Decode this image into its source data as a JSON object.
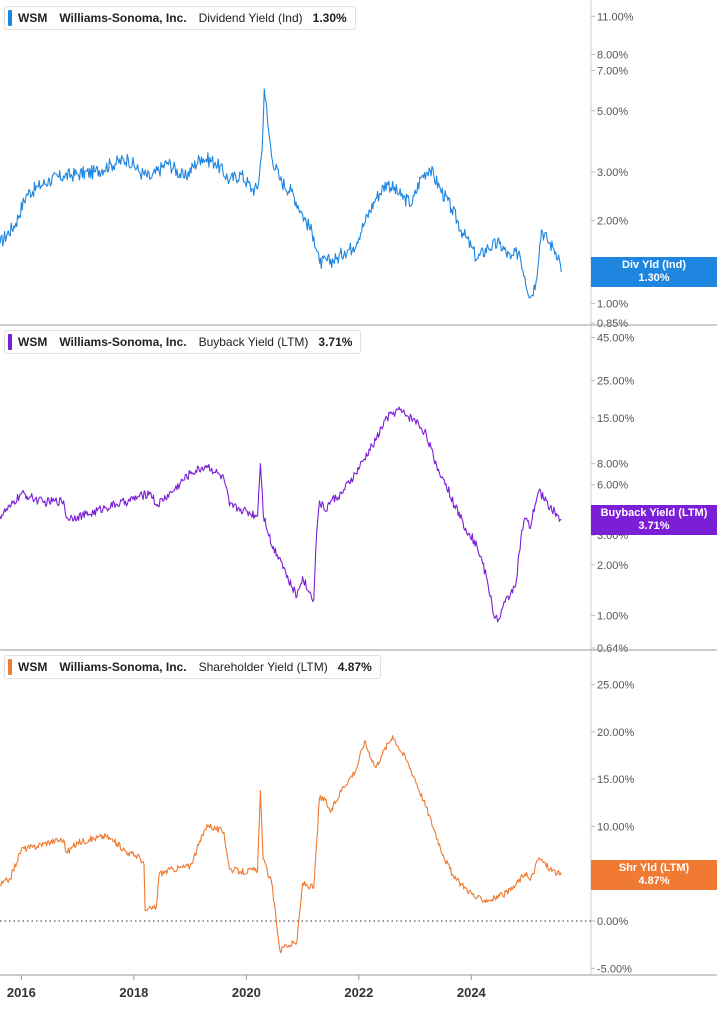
{
  "chart_data": [
    {
      "type": "line",
      "ticker": "WSM",
      "company": "Williams-Sonoma, Inc.",
      "metric": "Dividend Yield (Ind)",
      "value": "1.30%",
      "tag_label": "Div Yld (Ind)",
      "tag_value": "1.30%",
      "color": "#1f86e0",
      "scale": "log",
      "ylim": [
        0.85,
        11.5
      ],
      "yticks": [
        {
          "v": 11,
          "label": "11.00%"
        },
        {
          "v": 8,
          "label": "8.00%"
        },
        {
          "v": 7,
          "label": "7.00%"
        },
        {
          "v": 5,
          "label": "5.00%"
        },
        {
          "v": 3,
          "label": "3.00%"
        },
        {
          "v": 2,
          "label": "2.00%"
        },
        {
          "v": 1,
          "label": "1.00%"
        },
        {
          "v": 0.85,
          "label": "0.85%"
        }
      ],
      "x": [
        2015.62,
        2015.9,
        2016.1,
        2016.3,
        2016.5,
        2016.75,
        2017.0,
        2017.3,
        2017.6,
        2017.9,
        2018.1,
        2018.3,
        2018.6,
        2018.9,
        2019.2,
        2019.45,
        2019.7,
        2019.9,
        2020.1,
        2020.2,
        2020.28,
        2020.32,
        2020.38,
        2020.45,
        2020.6,
        2020.8,
        2021.0,
        2021.2,
        2021.3,
        2021.6,
        2021.75,
        2021.9,
        2022.1,
        2022.3,
        2022.5,
        2022.75,
        2022.95,
        2023.1,
        2023.25,
        2023.45,
        2023.65,
        2023.85,
        2024.0,
        2024.1,
        2024.3,
        2024.5,
        2024.7,
        2024.85,
        2024.95,
        2025.05,
        2025.15,
        2025.25,
        2025.35,
        2025.45,
        2025.55,
        2025.6
      ],
      "values": [
        1.65,
        1.95,
        2.5,
        2.65,
        2.8,
        2.9,
        2.95,
        3.0,
        3.2,
        3.35,
        3.0,
        2.85,
        3.25,
        2.85,
        3.4,
        3.25,
        2.8,
        2.95,
        2.6,
        2.6,
        3.6,
        6.0,
        4.5,
        3.4,
        2.8,
        2.55,
        2.1,
        1.75,
        1.4,
        1.45,
        1.55,
        1.6,
        1.95,
        2.4,
        2.75,
        2.45,
        2.3,
        2.85,
        3.1,
        2.6,
        2.2,
        1.8,
        1.6,
        1.45,
        1.6,
        1.65,
        1.45,
        1.55,
        1.25,
        1.05,
        1.2,
        1.85,
        1.7,
        1.6,
        1.5,
        1.3
      ]
    },
    {
      "type": "line",
      "ticker": "WSM",
      "company": "Williams-Sonoma, Inc.",
      "metric": "Buyback Yield (LTM)",
      "value": "3.71%",
      "tag_label": "Buyback Yield (LTM)",
      "tag_value": "3.71%",
      "color": "#7b1fd6",
      "scale": "log",
      "ylim": [
        0.64,
        46
      ],
      "yticks": [
        {
          "v": 45,
          "label": "45.00%"
        },
        {
          "v": 25,
          "label": "25.00%"
        },
        {
          "v": 15,
          "label": "15.00%"
        },
        {
          "v": 8,
          "label": "8.00%"
        },
        {
          "v": 6,
          "label": "6.00%"
        },
        {
          "v": 3,
          "label": "3.00%"
        },
        {
          "v": 2,
          "label": "2.00%"
        },
        {
          "v": 1,
          "label": "1.00%"
        },
        {
          "v": 0.64,
          "label": "0.64%"
        }
      ],
      "x": [
        2015.62,
        2015.8,
        2016.0,
        2016.2,
        2016.4,
        2016.6,
        2016.75,
        2016.8,
        2017.0,
        2017.2,
        2017.5,
        2017.7,
        2017.9,
        2018.1,
        2018.3,
        2018.4,
        2018.7,
        2019.0,
        2019.3,
        2019.6,
        2019.7,
        2019.9,
        2020.2,
        2020.25,
        2020.3,
        2020.45,
        2020.6,
        2020.75,
        2020.9,
        2021.0,
        2021.1,
        2021.2,
        2021.3,
        2021.4,
        2021.5,
        2021.7,
        2021.95,
        2022.1,
        2022.3,
        2022.5,
        2022.7,
        2022.85,
        2023.0,
        2023.2,
        2023.35,
        2023.5,
        2023.7,
        2023.9,
        2024.1,
        2024.3,
        2024.4,
        2024.5,
        2024.6,
        2024.7,
        2024.8,
        2024.95,
        2025.05,
        2025.2,
        2025.4,
        2025.6
      ],
      "values": [
        3.9,
        4.4,
        5.3,
        5.0,
        4.7,
        4.8,
        4.8,
        3.8,
        3.9,
        4.0,
        4.4,
        4.6,
        4.8,
        5.1,
        5.4,
        4.5,
        5.5,
        7.0,
        7.8,
        6.5,
        4.5,
        4.3,
        3.9,
        8.0,
        4.0,
        2.6,
        2.2,
        1.6,
        1.3,
        1.7,
        1.4,
        1.25,
        4.8,
        4.2,
        4.8,
        5.3,
        7.0,
        8.5,
        11.0,
        15.0,
        16.8,
        15.5,
        14.5,
        12.0,
        8.0,
        6.5,
        4.5,
        3.3,
        2.6,
        1.5,
        1.0,
        0.95,
        1.2,
        1.35,
        1.6,
        3.8,
        3.3,
        5.5,
        4.4,
        3.71
      ]
    },
    {
      "type": "line",
      "ticker": "WSM",
      "company": "Williams-Sonoma, Inc.",
      "metric": "Shareholder Yield (LTM)",
      "value": "4.87%",
      "tag_label": "Shr Yld (LTM)",
      "tag_value": "4.87%",
      "color": "#f07a32",
      "scale": "linear",
      "ylim": [
        -5.5,
        27.5
      ],
      "yticks": [
        {
          "v": 25,
          "label": "25.00%"
        },
        {
          "v": 20,
          "label": "20.00%"
        },
        {
          "v": 15,
          "label": "15.00%"
        },
        {
          "v": 10,
          "label": "10.00%"
        },
        {
          "v": 5,
          "label": "5.00%"
        },
        {
          "v": 0,
          "label": "0.00%"
        },
        {
          "v": -5,
          "label": "-5.00%"
        }
      ],
      "x": [
        2015.62,
        2015.8,
        2016.0,
        2016.2,
        2016.4,
        2016.6,
        2016.75,
        2016.8,
        2017.0,
        2017.2,
        2017.5,
        2017.7,
        2017.9,
        2018.1,
        2018.18,
        2018.2,
        2018.4,
        2018.45,
        2018.7,
        2019.0,
        2019.3,
        2019.6,
        2019.7,
        2019.9,
        2020.2,
        2020.25,
        2020.3,
        2020.45,
        2020.6,
        2020.7,
        2020.75,
        2020.9,
        2021.0,
        2021.2,
        2021.3,
        2021.4,
        2021.5,
        2021.7,
        2021.95,
        2022.1,
        2022.3,
        2022.4,
        2022.6,
        2022.7,
        2022.85,
        2023.0,
        2023.2,
        2023.35,
        2023.5,
        2023.7,
        2023.9,
        2024.1,
        2024.3,
        2024.5,
        2024.7,
        2024.95,
        2025.05,
        2025.2,
        2025.4,
        2025.6
      ],
      "values": [
        3.8,
        4.5,
        7.6,
        7.8,
        8.2,
        8.5,
        8.6,
        7.2,
        8.3,
        8.6,
        9.0,
        8.2,
        7.2,
        6.8,
        6.0,
        1.1,
        1.5,
        5.0,
        5.5,
        5.8,
        10.2,
        9.4,
        5.5,
        5.2,
        5.4,
        13.8,
        6.5,
        4.0,
        -3.2,
        -2.5,
        -2.6,
        -2.2,
        4.0,
        3.5,
        13.0,
        12.8,
        11.5,
        14.0,
        16.0,
        19.0,
        16.2,
        17.5,
        19.6,
        18.5,
        17.0,
        15.0,
        12.0,
        9.5,
        7.0,
        4.5,
        3.5,
        2.4,
        2.2,
        2.6,
        3.2,
        5.0,
        4.3,
        6.7,
        5.5,
        4.87
      ]
    }
  ],
  "x_axis": {
    "ticks": [
      {
        "v": 2016,
        "label": "2016"
      },
      {
        "v": 2018,
        "label": "2018"
      },
      {
        "v": 2020,
        "label": "2020"
      },
      {
        "v": 2022,
        "label": "2022"
      },
      {
        "v": 2024,
        "label": "2024"
      }
    ],
    "xlim": [
      2015.62,
      2025.95
    ]
  }
}
